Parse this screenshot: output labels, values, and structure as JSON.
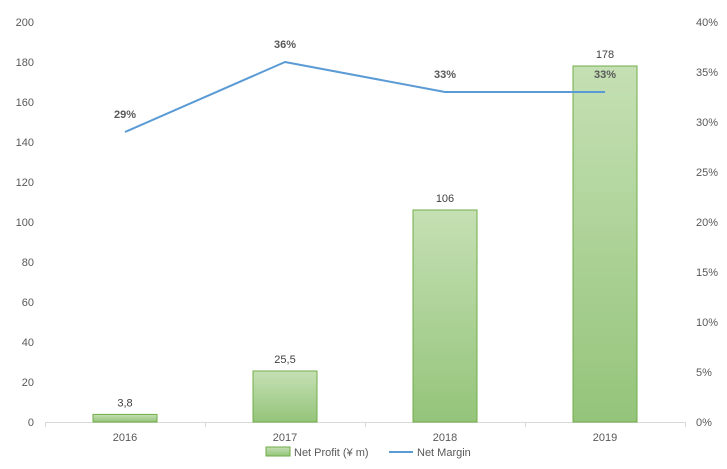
{
  "chart_data": {
    "type": "bar",
    "categories": [
      "2016",
      "2017",
      "2018",
      "2019"
    ],
    "series": [
      {
        "name": "Net Profit (¥ m)",
        "type": "bar",
        "axis": "left",
        "values": [
          3.8,
          25.5,
          106,
          178
        ],
        "labels": [
          "3,8",
          "25,5",
          "106",
          "178"
        ],
        "color": "#a9d18e"
      },
      {
        "name": "Net Margin",
        "type": "line",
        "axis": "right",
        "values": [
          29,
          36,
          33,
          33
        ],
        "labels": [
          "29%",
          "36%",
          "33%",
          "33%"
        ],
        "color": "#5b9bd5"
      }
    ],
    "y_left": {
      "min": 0,
      "max": 200,
      "ticks": [
        "0",
        "20",
        "40",
        "60",
        "80",
        "100",
        "120",
        "140",
        "160",
        "180",
        "200"
      ]
    },
    "y_right": {
      "min": 0,
      "max": 40,
      "ticks": [
        "0%",
        "5%",
        "10%",
        "15%",
        "20%",
        "25%",
        "30%",
        "35%",
        "40%"
      ]
    },
    "legend_position": "bottom",
    "grid": false
  }
}
